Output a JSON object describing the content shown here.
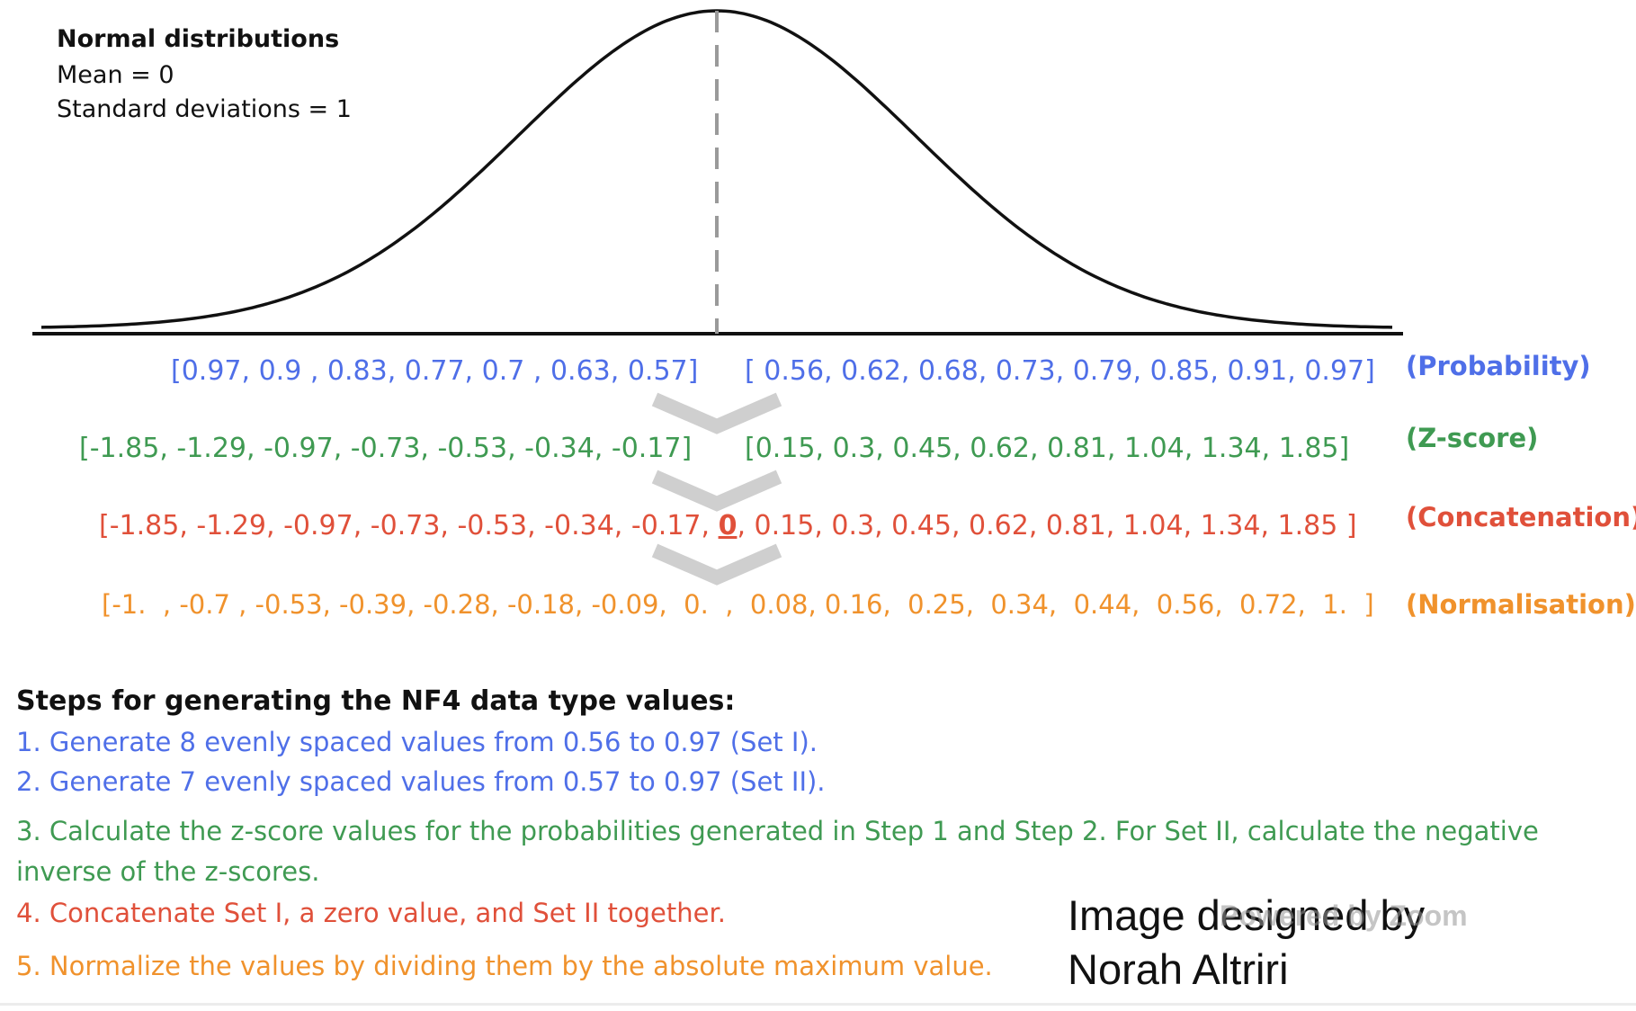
{
  "info": {
    "title": "Normal distributions",
    "mean": "Mean = 0",
    "std": "Standard deviations = 1"
  },
  "rows": {
    "probability": {
      "left": "[0.97, 0.9 , 0.83, 0.77, 0.7 , 0.63, 0.57]",
      "right": "[ 0.56, 0.62, 0.68, 0.73, 0.79, 0.85, 0.91, 0.97]",
      "label": "(Probability)"
    },
    "zscore": {
      "left": "[-1.85, -1.29, -0.97, -0.73, -0.53, -0.34, -0.17]",
      "right": "[0.15, 0.3, 0.45, 0.62, 0.81, 1.04, 1.34, 1.85]",
      "label": "(Z-score)"
    },
    "concatenation": {
      "left": "[-1.85, -1.29, -0.97, -0.73, -0.53, -0.34, -0.17,",
      "zero": "0",
      "right": ",  0.15, 0.3, 0.45, 0.62, 0.81, 1.04, 1.34, 1.85 ]",
      "label": "(Concatenation)"
    },
    "normalisation": {
      "values": "[-1.  , -0.7 , -0.53, -0.39, -0.28, -0.18, -0.09,  0.  ,  0.08, 0.16,  0.25,  0.34,  0.44,  0.56,  0.72,  1.  ]",
      "label": "(Normalisation)"
    }
  },
  "steps": {
    "title": "Steps for generating the NF4 data type values:",
    "items": [
      "1. Generate 8 evenly spaced values from 0.56 to 0.97 (Set I).",
      "2. Generate 7 evenly spaced values from 0.57 to 0.97 (Set II).",
      "3. Calculate the z-score values for the probabilities generated in Step 1 and Step 2. For Set II, calculate the negative inverse of the z-scores.",
      "4. Concatenate Set I, a zero value, and Set II together.",
      "5. Normalize the values by dividing them by the absolute maximum value."
    ]
  },
  "credit": {
    "line1": "Image designed by",
    "line2": "Norah Altriri",
    "watermark": "Powered by Zoom"
  },
  "colors": {
    "probability": "#4f6fe8",
    "zscore": "#3f9a52",
    "concatenation": "#e0503a",
    "normalisation": "#f0922c"
  }
}
